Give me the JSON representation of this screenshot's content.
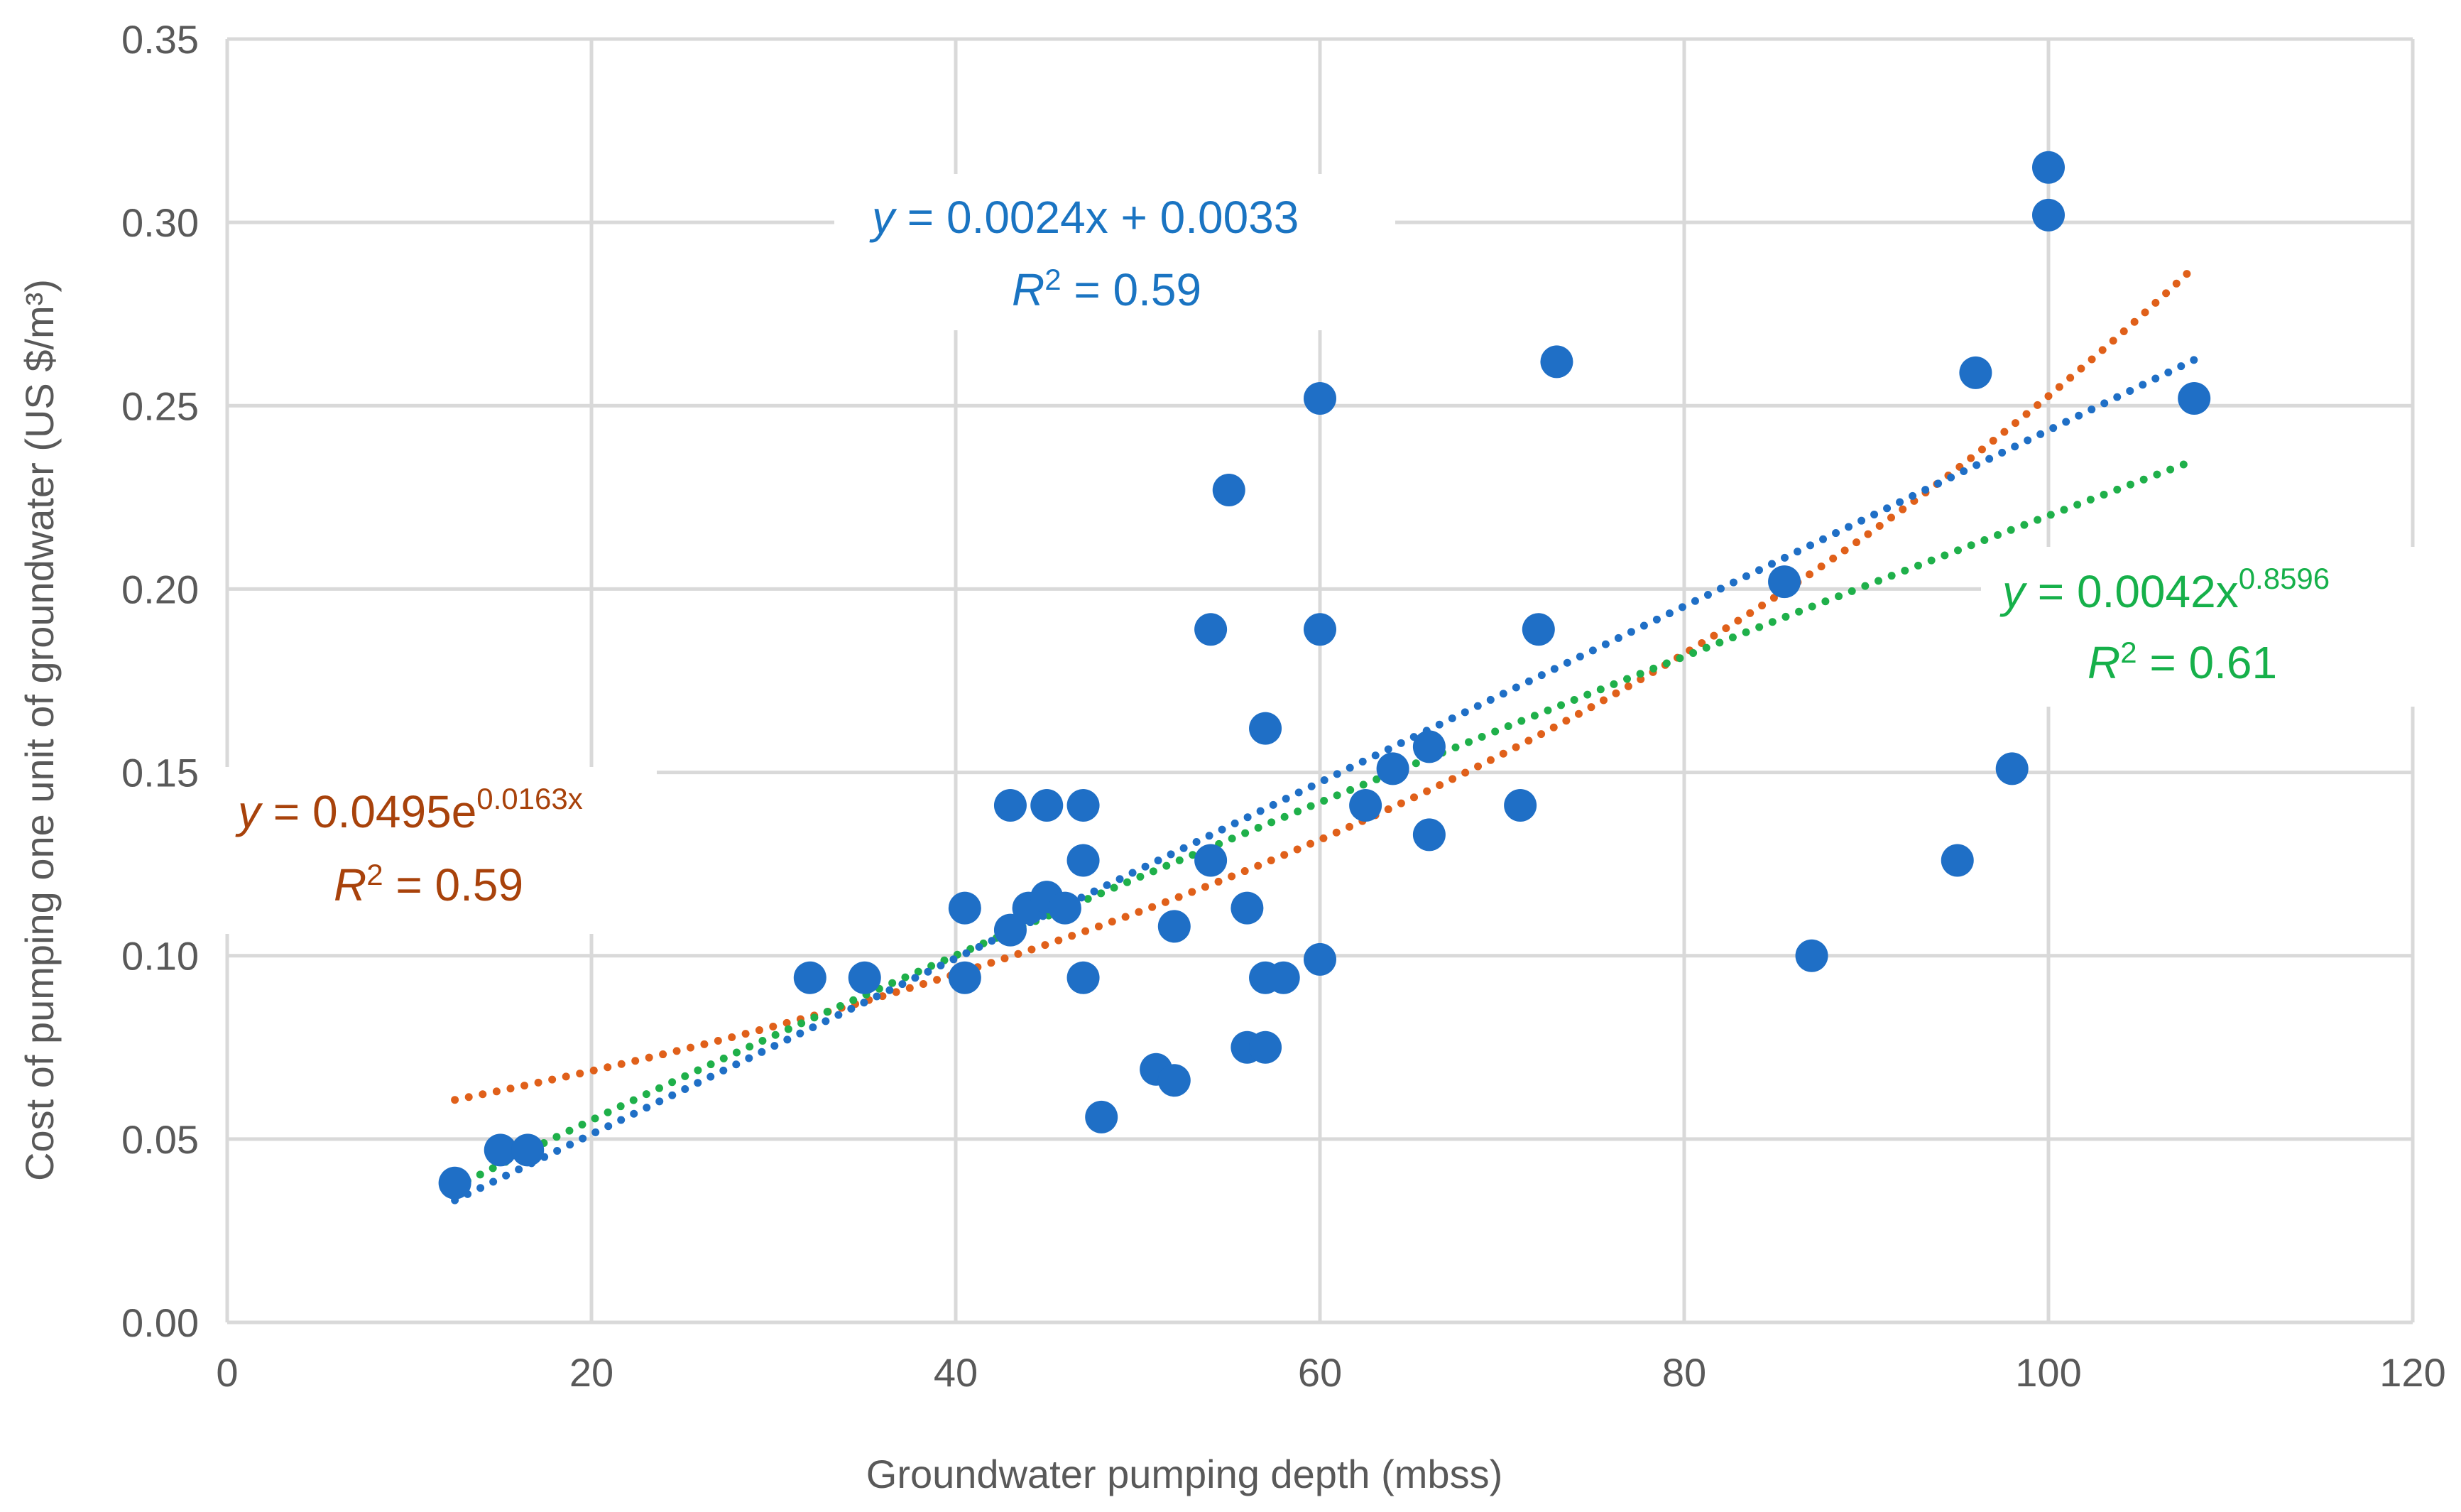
{
  "chart_data": {
    "type": "scatter",
    "xlabel": "Groundwater pumping depth (mbss)",
    "ylabel": "Cost of pumping one unit  of groundwater (US $/m³)",
    "xlim": [
      0,
      120
    ],
    "ylim": [
      0,
      0.35
    ],
    "xticks": [
      0,
      20,
      40,
      60,
      80,
      100,
      120
    ],
    "yticks": [
      0.0,
      0.05,
      0.1,
      0.15,
      0.2,
      0.25,
      0.3,
      0.35
    ],
    "ytick_labels": [
      "0.00",
      "0.05",
      "0.10",
      "0.15",
      "0.20",
      "0.25",
      "0.30",
      "0.35"
    ],
    "grid": true,
    "colors": {
      "points": "#1f6fc6",
      "linear": "#1f6fc6",
      "exponential": "#e0601a",
      "power": "#1fb04a",
      "linear_text": "#1a74c2",
      "exponential_text": "#a8420b",
      "power_text": "#16b04a"
    },
    "points": [
      [
        12.5,
        0.038
      ],
      [
        15,
        0.047
      ],
      [
        16.5,
        0.047
      ],
      [
        32,
        0.094
      ],
      [
        35,
        0.094
      ],
      [
        40.5,
        0.113
      ],
      [
        40.5,
        0.094
      ],
      [
        43,
        0.141
      ],
      [
        43,
        0.107
      ],
      [
        44,
        0.113
      ],
      [
        45,
        0.141
      ],
      [
        45,
        0.116
      ],
      [
        46,
        0.113
      ],
      [
        47,
        0.141
      ],
      [
        47,
        0.126
      ],
      [
        47,
        0.094
      ],
      [
        48,
        0.056
      ],
      [
        51,
        0.069
      ],
      [
        52,
        0.066
      ],
      [
        52,
        0.108
      ],
      [
        54,
        0.189
      ],
      [
        54,
        0.126
      ],
      [
        55,
        0.227
      ],
      [
        56,
        0.113
      ],
      [
        56,
        0.075
      ],
      [
        57,
        0.075
      ],
      [
        57,
        0.162
      ],
      [
        57,
        0.094
      ],
      [
        58,
        0.094
      ],
      [
        60,
        0.252
      ],
      [
        60,
        0.189
      ],
      [
        60,
        0.099
      ],
      [
        62.5,
        0.141
      ],
      [
        64,
        0.151
      ],
      [
        66,
        0.157
      ],
      [
        66,
        0.133
      ],
      [
        71,
        0.141
      ],
      [
        72,
        0.189
      ],
      [
        73,
        0.262
      ],
      [
        85.5,
        0.202
      ],
      [
        87,
        0.1
      ],
      [
        95,
        0.126
      ],
      [
        96,
        0.259
      ],
      [
        98,
        0.151
      ],
      [
        100,
        0.315
      ],
      [
        100,
        0.302
      ],
      [
        108,
        0.252
      ]
    ],
    "trendlines": {
      "linear": {
        "slope": 0.0024,
        "intercept": 0.0033,
        "x_range": [
          12.5,
          108
        ]
      },
      "exponential": {
        "a": 0.0495,
        "b": 0.0163,
        "x_range": [
          12.5,
          108
        ]
      },
      "power": {
        "a": 0.0042,
        "b": 0.8596,
        "x_range": [
          12.5,
          108
        ]
      }
    },
    "equations": {
      "linear": {
        "y": "y",
        "rest": " = 0.0024x + 0.0033",
        "r": "R",
        "r_sup": "2",
        "r_rest": " = 0.59"
      },
      "exponential": {
        "y": "y",
        "base": " = 0.0495e",
        "exp": "0.0163x",
        "r": "R",
        "r_sup": "2",
        "r_rest": " = 0.59"
      },
      "power": {
        "y": "y",
        "base": " = 0.0042x",
        "exp": "0.8596",
        "r": "R",
        "r_sup": "2",
        "r_rest": " = 0.61"
      }
    }
  }
}
